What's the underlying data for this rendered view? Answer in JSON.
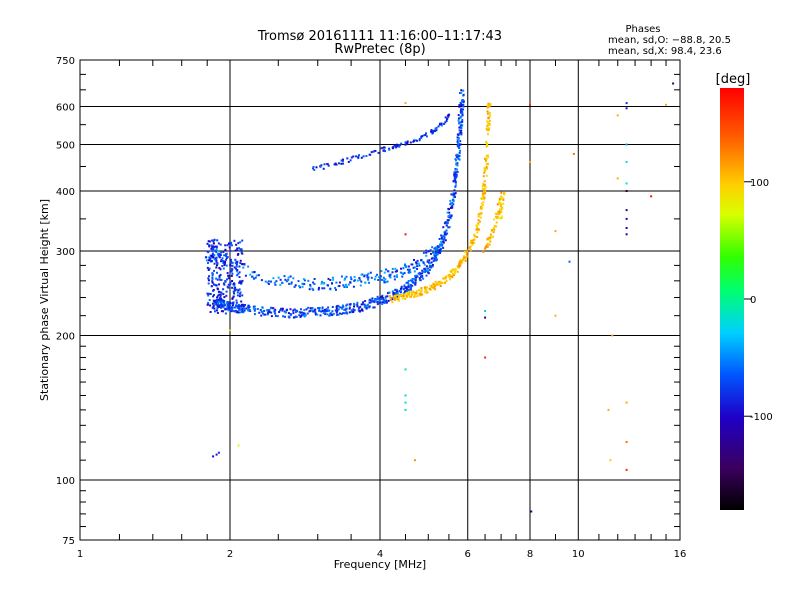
{
  "chart_data": {
    "type": "scatter",
    "title": "Tromsø 20161111 11:16:00–11:17:43",
    "subtitle": "RwPretec (8p)",
    "xlabel": "Frequency [MHz]",
    "ylabel": "Stationary phase Virtual Height [km]",
    "x_scale": "log",
    "y_scale": "log",
    "xlim": [
      1,
      16
    ],
    "ylim": [
      75,
      750
    ],
    "x_ticks": [
      1,
      2,
      4,
      6,
      8,
      10,
      16
    ],
    "y_ticks": [
      75,
      100,
      200,
      300,
      400,
      500,
      600,
      750
    ],
    "grid": true,
    "stats": {
      "heading": "Phases",
      "line_o": "mean, sd,O:  −88.8,  20.5",
      "line_x": "mean, sd,X:   98.4,  23.6"
    },
    "colorbar": {
      "label": "[deg]",
      "range": [
        -180,
        180
      ],
      "ticks": [
        100,
        0,
        -100
      ]
    },
    "o_trace": [
      [
        1.85,
        230
      ],
      [
        1.9,
        235
      ],
      [
        1.95,
        232
      ],
      [
        2.0,
        230
      ],
      [
        2.1,
        228
      ],
      [
        2.2,
        226
      ],
      [
        2.4,
        224
      ],
      [
        2.6,
        223
      ],
      [
        2.8,
        223
      ],
      [
        3.0,
        224
      ],
      [
        3.2,
        225
      ],
      [
        3.4,
        227
      ],
      [
        3.6,
        229
      ],
      [
        3.8,
        232
      ],
      [
        4.0,
        236
      ],
      [
        4.2,
        241
      ],
      [
        4.4,
        247
      ],
      [
        4.6,
        255
      ],
      [
        4.8,
        265
      ],
      [
        5.0,
        278
      ],
      [
        5.2,
        295
      ],
      [
        5.35,
        318
      ],
      [
        5.5,
        350
      ],
      [
        5.6,
        385
      ],
      [
        5.68,
        430
      ],
      [
        5.74,
        480
      ],
      [
        5.78,
        530
      ],
      [
        5.82,
        590
      ],
      [
        5.85,
        640
      ]
    ],
    "o_upper_band": [
      [
        1.8,
        285
      ],
      [
        1.85,
        300
      ],
      [
        1.9,
        295
      ],
      [
        2.0,
        280
      ],
      [
        2.2,
        270
      ],
      [
        2.4,
        262
      ],
      [
        2.6,
        258
      ],
      [
        2.8,
        256
      ],
      [
        3.0,
        255
      ],
      [
        3.2,
        256
      ],
      [
        3.4,
        258
      ],
      [
        3.6,
        260
      ],
      [
        3.8,
        262
      ],
      [
        4.0,
        265
      ],
      [
        4.2,
        268
      ],
      [
        4.4,
        272
      ],
      [
        4.6,
        278
      ],
      [
        4.8,
        284
      ],
      [
        5.0,
        292
      ],
      [
        5.2,
        303
      ],
      [
        5.4,
        318
      ]
    ],
    "o_branch": [
      [
        2.9,
        445
      ],
      [
        3.1,
        450
      ],
      [
        3.3,
        458
      ],
      [
        3.5,
        466
      ],
      [
        3.7,
        474
      ],
      [
        3.9,
        482
      ],
      [
        4.1,
        490
      ],
      [
        4.3,
        496
      ],
      [
        4.5,
        502
      ],
      [
        4.7,
        510
      ],
      [
        4.9,
        520
      ],
      [
        5.1,
        532
      ],
      [
        5.25,
        545
      ],
      [
        5.4,
        560
      ],
      [
        5.5,
        580
      ]
    ],
    "x_trace": [
      [
        4.2,
        238
      ],
      [
        4.4,
        240
      ],
      [
        4.6,
        243
      ],
      [
        4.8,
        246
      ],
      [
        5.0,
        250
      ],
      [
        5.2,
        255
      ],
      [
        5.4,
        262
      ],
      [
        5.6,
        270
      ],
      [
        5.8,
        282
      ],
      [
        6.0,
        298
      ],
      [
        6.2,
        320
      ],
      [
        6.35,
        350
      ],
      [
        6.45,
        390
      ],
      [
        6.52,
        440
      ],
      [
        6.57,
        500
      ],
      [
        6.6,
        560
      ],
      [
        6.62,
        610
      ]
    ],
    "x_tail": [
      [
        6.5,
        300
      ],
      [
        6.6,
        310
      ],
      [
        6.7,
        325
      ],
      [
        6.8,
        340
      ],
      [
        6.9,
        358
      ],
      [
        7.0,
        380
      ],
      [
        7.05,
        400
      ],
      [
        7.0,
        370
      ],
      [
        6.95,
        350
      ]
    ],
    "scattered_points": [
      [
        1.85,
        112,
        -100
      ],
      [
        1.88,
        113,
        -90
      ],
      [
        1.9,
        114,
        -80
      ],
      [
        2.08,
        118,
        70
      ],
      [
        2.0,
        205,
        100
      ],
      [
        4.5,
        170,
        -10
      ],
      [
        4.5,
        150,
        -30
      ],
      [
        4.5,
        145,
        -20
      ],
      [
        4.5,
        140,
        -10
      ],
      [
        4.5,
        325,
        170
      ],
      [
        4.5,
        610,
        110
      ],
      [
        4.7,
        110,
        120
      ],
      [
        6.5,
        180,
        160
      ],
      [
        6.5,
        225,
        -30
      ],
      [
        6.5,
        218,
        -120
      ],
      [
        8.0,
        605,
        160
      ],
      [
        8.0,
        460,
        110
      ],
      [
        8.05,
        86,
        -130
      ],
      [
        9.0,
        330,
        110
      ],
      [
        9.0,
        220,
        110
      ],
      [
        9.6,
        285,
        -60
      ],
      [
        9.8,
        478,
        130
      ],
      [
        11.5,
        140,
        110
      ],
      [
        11.6,
        110,
        100
      ],
      [
        11.7,
        200,
        110
      ],
      [
        12.0,
        575,
        110
      ],
      [
        12.0,
        425,
        110
      ],
      [
        12.5,
        610,
        -80
      ],
      [
        12.5,
        595,
        -90
      ],
      [
        12.5,
        500,
        -40
      ],
      [
        12.5,
        460,
        -20
      ],
      [
        12.5,
        415,
        -10
      ],
      [
        12.5,
        400,
        -160
      ],
      [
        12.5,
        365,
        -120
      ],
      [
        12.5,
        350,
        -110
      ],
      [
        12.5,
        335,
        -100
      ],
      [
        12.5,
        325,
        -100
      ],
      [
        12.5,
        145,
        110
      ],
      [
        12.5,
        120,
        130
      ],
      [
        12.5,
        105,
        160
      ],
      [
        14.0,
        390,
        170
      ],
      [
        15.0,
        605,
        110
      ],
      [
        15.5,
        670,
        -150
      ]
    ]
  }
}
